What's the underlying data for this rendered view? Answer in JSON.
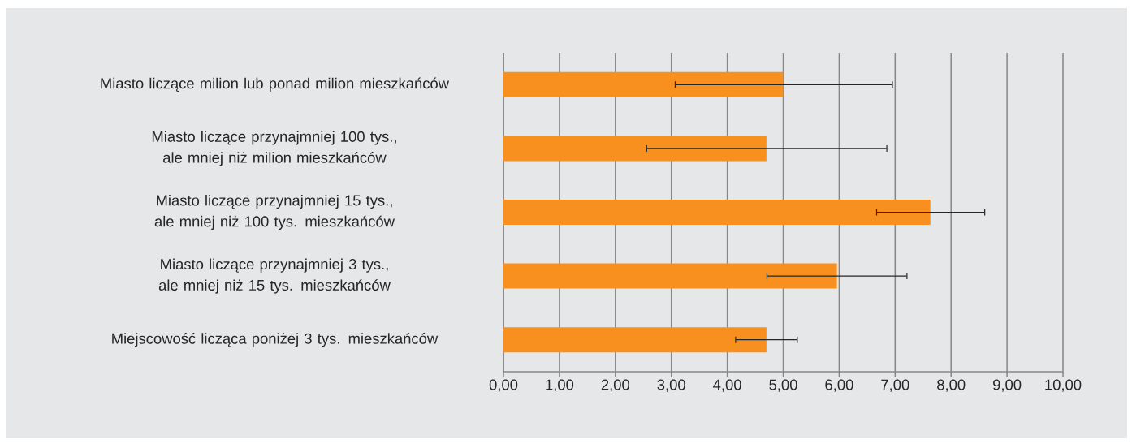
{
  "chart_data": {
    "type": "bar",
    "orientation": "horizontal",
    "categories": [
      "Miasto liczące milion lub ponad milion mieszkańców",
      "Miasto liczące przynajmniej 100 tys., ale mniej niż milion mieszkańców",
      "Miasto liczące przynajmniej 15 tys., ale mniej niż 100 tys. mieszkańców",
      "Miasto liczące przynajmniej 3 tys., ale mniej niż 15 tys. mieszkańców",
      "Miejscowość licząca poniżej 3 tys. mieszkańców"
    ],
    "values": [
      5.0,
      4.7,
      7.63,
      5.96,
      4.7
    ],
    "errors": [
      [
        3.06,
        6.96
      ],
      [
        2.55,
        6.86
      ],
      [
        6.66,
        8.61
      ],
      [
        4.7,
        7.22
      ],
      [
        4.14,
        5.26
      ]
    ],
    "color": "#f7901e",
    "xlim": [
      0,
      10
    ],
    "xticks": [
      {
        "value": 0,
        "label": "0,00"
      },
      {
        "value": 1,
        "label": "1,00"
      },
      {
        "value": 2,
        "label": "2,00"
      },
      {
        "value": 3,
        "label": "3,00"
      },
      {
        "value": 4,
        "label": "4,00"
      },
      {
        "value": 5,
        "label": "5,00"
      },
      {
        "value": 6,
        "label": "6,00"
      },
      {
        "value": 7,
        "label": "7,00"
      },
      {
        "value": 8,
        "label": "8,00"
      },
      {
        "value": 9,
        "label": "9,00"
      },
      {
        "value": 10,
        "label": "10,00"
      }
    ],
    "grid": "x"
  }
}
